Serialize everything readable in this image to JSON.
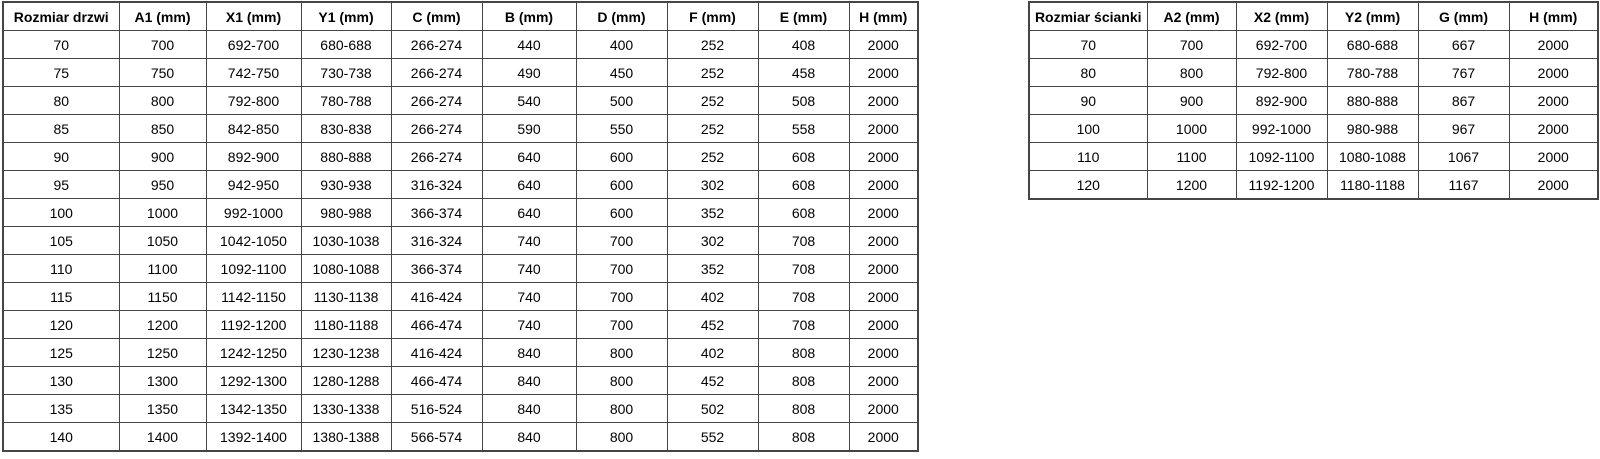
{
  "page": {
    "background_color": "#ffffff",
    "border_color": "#454545",
    "text_color": "#000000"
  },
  "tables": [
    {
      "name": "door-size-table",
      "headers": [
        "Rozmiar drzwi",
        "A1 (mm)",
        "X1 (mm)",
        "Y1 (mm)",
        "C (mm)",
        "B (mm)",
        "D (mm)",
        "F (mm)",
        "E (mm)",
        "H (mm)"
      ],
      "rows": [
        [
          "70",
          "700",
          "692-700",
          "680-688",
          "266-274",
          "440",
          "400",
          "252",
          "408",
          "2000"
        ],
        [
          "75",
          "750",
          "742-750",
          "730-738",
          "266-274",
          "490",
          "450",
          "252",
          "458",
          "2000"
        ],
        [
          "80",
          "800",
          "792-800",
          "780-788",
          "266-274",
          "540",
          "500",
          "252",
          "508",
          "2000"
        ],
        [
          "85",
          "850",
          "842-850",
          "830-838",
          "266-274",
          "590",
          "550",
          "252",
          "558",
          "2000"
        ],
        [
          "90",
          "900",
          "892-900",
          "880-888",
          "266-274",
          "640",
          "600",
          "252",
          "608",
          "2000"
        ],
        [
          "95",
          "950",
          "942-950",
          "930-938",
          "316-324",
          "640",
          "600",
          "302",
          "608",
          "2000"
        ],
        [
          "100",
          "1000",
          "992-1000",
          "980-988",
          "366-374",
          "640",
          "600",
          "352",
          "608",
          "2000"
        ],
        [
          "105",
          "1050",
          "1042-1050",
          "1030-1038",
          "316-324",
          "740",
          "700",
          "302",
          "708",
          "2000"
        ],
        [
          "110",
          "1100",
          "1092-1100",
          "1080-1088",
          "366-374",
          "740",
          "700",
          "352",
          "708",
          "2000"
        ],
        [
          "115",
          "1150",
          "1142-1150",
          "1130-1138",
          "416-424",
          "740",
          "700",
          "402",
          "708",
          "2000"
        ],
        [
          "120",
          "1200",
          "1192-1200",
          "1180-1188",
          "466-474",
          "740",
          "700",
          "452",
          "708",
          "2000"
        ],
        [
          "125",
          "1250",
          "1242-1250",
          "1230-1238",
          "416-424",
          "840",
          "800",
          "402",
          "808",
          "2000"
        ],
        [
          "130",
          "1300",
          "1292-1300",
          "1280-1288",
          "466-474",
          "840",
          "800",
          "452",
          "808",
          "2000"
        ],
        [
          "135",
          "1350",
          "1342-1350",
          "1330-1338",
          "516-524",
          "840",
          "800",
          "502",
          "808",
          "2000"
        ],
        [
          "140",
          "1400",
          "1392-1400",
          "1380-1388",
          "566-574",
          "840",
          "800",
          "552",
          "808",
          "2000"
        ]
      ]
    },
    {
      "name": "wall-size-table",
      "headers": [
        "Rozmiar ścianki",
        "A2 (mm)",
        "X2 (mm)",
        "Y2 (mm)",
        "G (mm)",
        "H (mm)"
      ],
      "rows": [
        [
          "70",
          "700",
          "692-700",
          "680-688",
          "667",
          "2000"
        ],
        [
          "80",
          "800",
          "792-800",
          "780-788",
          "767",
          "2000"
        ],
        [
          "90",
          "900",
          "892-900",
          "880-888",
          "867",
          "2000"
        ],
        [
          "100",
          "1000",
          "992-1000",
          "980-988",
          "967",
          "2000"
        ],
        [
          "110",
          "1100",
          "1092-1100",
          "1080-1088",
          "1067",
          "2000"
        ],
        [
          "120",
          "1200",
          "1192-1200",
          "1180-1188",
          "1167",
          "2000"
        ]
      ]
    }
  ]
}
